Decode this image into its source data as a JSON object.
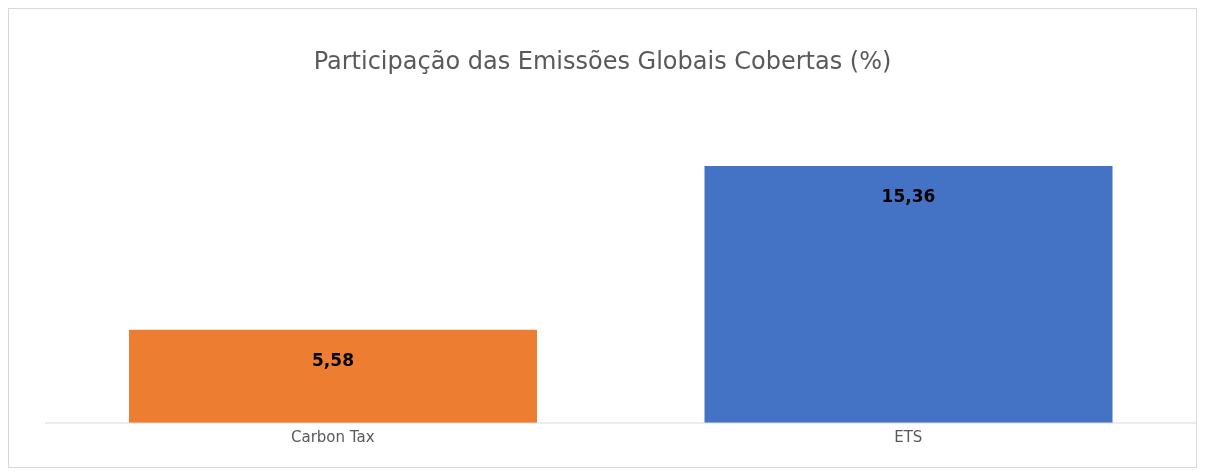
{
  "chart_data": {
    "type": "bar",
    "title": "Participação das Emissões Globais Cobertas (%)",
    "categories": [
      "Carbon Tax",
      "ETS"
    ],
    "values": [
      5.58,
      15.36
    ],
    "colors": [
      "#ed7d31",
      "#4472c4"
    ],
    "value_labels": [
      "5,58",
      "15,36"
    ],
    "grid": false,
    "legend": false
  }
}
